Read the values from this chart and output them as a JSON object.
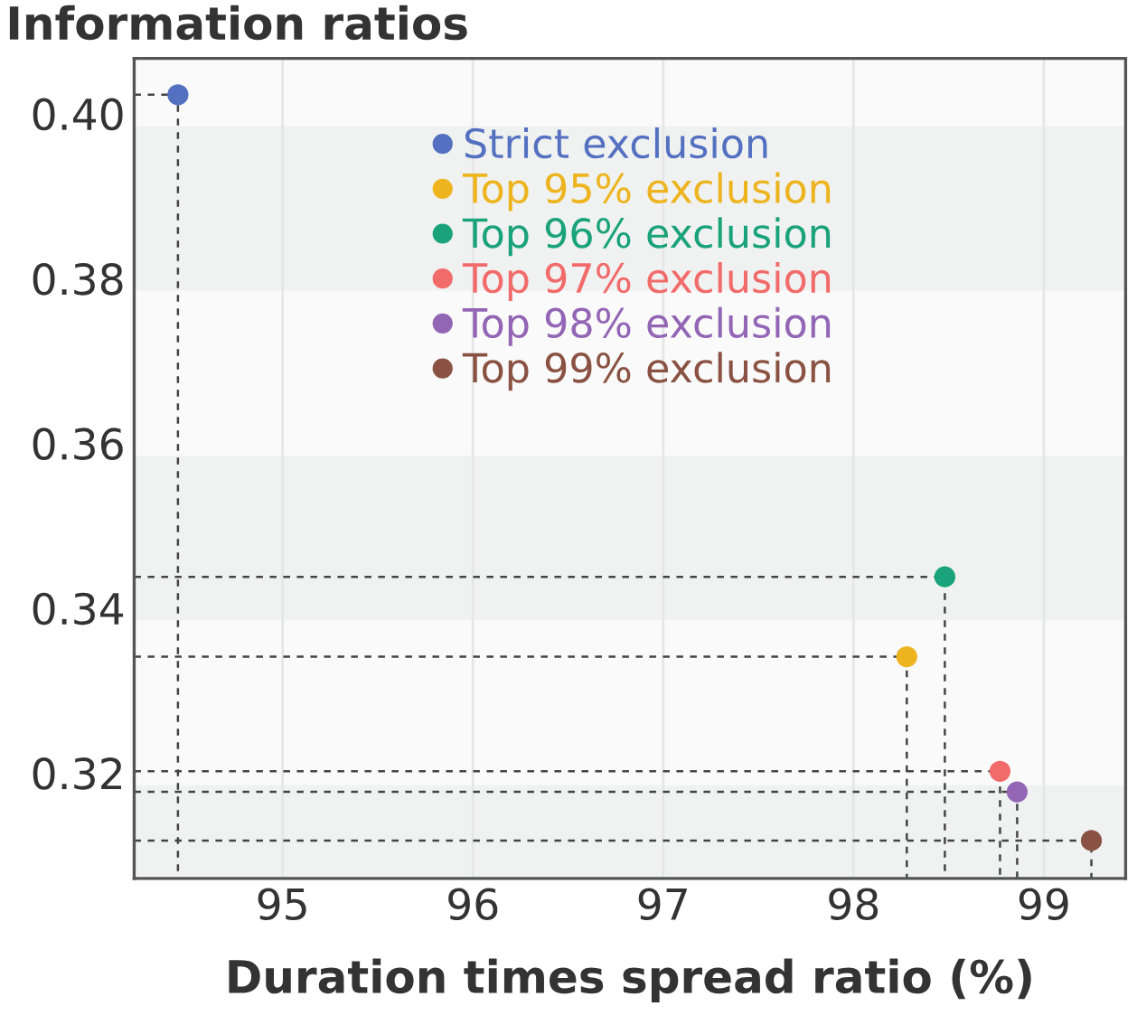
{
  "chart_data": {
    "type": "scatter",
    "ylabel": "Information ratios",
    "xlabel": "Duration times spread ratio (%)",
    "series": [
      {
        "type": "line",
        "color": "#444444",
        "line_style": "dashed",
        "marker": "none",
        "x": [
          94.22,
          94.45,
          94.45
        ],
        "values": [
          0.4023,
          0.4023,
          0.3072
        ]
      },
      {
        "type": "line",
        "color": "#444444",
        "line_style": "dashed",
        "marker": "none",
        "x": [
          94.22,
          98.28,
          98.28
        ],
        "values": [
          0.3341,
          0.3341,
          0.3072
        ]
      },
      {
        "type": "line",
        "color": "#444444",
        "line_style": "dashed",
        "marker": "none",
        "x": [
          94.22,
          98.48,
          98.48
        ],
        "values": [
          0.3438,
          0.3438,
          0.3072
        ]
      },
      {
        "type": "line",
        "color": "#444444",
        "line_style": "dashed",
        "marker": "none",
        "x": [
          94.22,
          98.77,
          98.77
        ],
        "values": [
          0.3202,
          0.3202,
          0.3072
        ]
      },
      {
        "type": "line",
        "color": "#444444",
        "line_style": "dashed",
        "marker": "none",
        "x": [
          94.22,
          98.86,
          98.86
        ],
        "values": [
          0.3177,
          0.3177,
          0.3072
        ]
      },
      {
        "type": "line",
        "color": "#444444",
        "line_style": "dashed",
        "marker": "none",
        "x": [
          94.22,
          99.25,
          99.25
        ],
        "values": [
          0.3118,
          0.3118,
          0.3072
        ]
      },
      {
        "name": "Strict exclusion",
        "color": "#5470c0",
        "x": [
          94.45
        ],
        "values": [
          0.4023
        ]
      },
      {
        "name": "Top 95% exclusion",
        "color": "#edb41f",
        "x": [
          98.28
        ],
        "values": [
          0.3341
        ]
      },
      {
        "name": "Top 96% exclusion",
        "color": "#1aa37a",
        "x": [
          98.48
        ],
        "values": [
          0.3438
        ]
      },
      {
        "name": "Top 97% exclusion",
        "color": "#f26b6b",
        "x": [
          98.77
        ],
        "values": [
          0.3202
        ]
      },
      {
        "name": "Top 98% exclusion",
        "color": "#9265b5",
        "x": [
          98.86
        ],
        "values": [
          0.3177
        ]
      },
      {
        "name": "Top 99% exclusion",
        "color": "#8a5243",
        "x": [
          99.25
        ],
        "values": [
          0.3118
        ]
      }
    ],
    "xlim": [
      94.22,
      99.43
    ],
    "xticks": [
      95,
      96,
      97,
      98,
      99
    ],
    "ylim": [
      0.3072,
      0.4067
    ],
    "yticks": [
      {
        "value": 0.32,
        "label": "0.32"
      },
      {
        "value": 0.34,
        "label": "0.34"
      },
      {
        "value": 0.36,
        "label": "0.36"
      },
      {
        "value": 0.38,
        "label": "0.38"
      },
      {
        "value": 0.4,
        "label": "0.40"
      }
    ],
    "bands": [
      {
        "axis": "y",
        "from": 0.3785,
        "to": 0.3985,
        "color": "#f0f2f1"
      },
      {
        "axis": "y",
        "from": 0.3385,
        "to": 0.3585,
        "color": "#f0f2f1"
      },
      {
        "axis": "y",
        "from": 0.3072,
        "to": 0.3185,
        "color": "#f0f2f1"
      }
    ],
    "grid": "x",
    "legend": "top",
    "marker": "circle"
  }
}
